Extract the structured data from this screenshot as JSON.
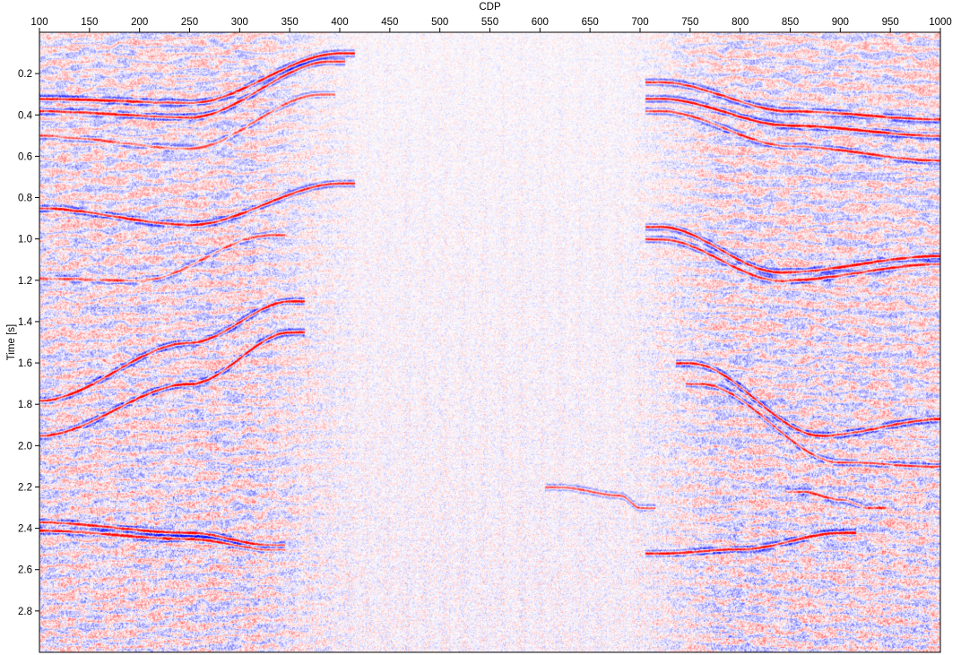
{
  "chart_data": {
    "type": "heatmap",
    "description_kind": "seismic-section",
    "xlabel": "CDP",
    "ylabel": "Time [s]",
    "x_axis_position": "top",
    "xlim": [
      100,
      1000
    ],
    "ylim": [
      0.0,
      3.0
    ],
    "y_inverted": true,
    "x_ticks": [
      100,
      150,
      200,
      250,
      300,
      350,
      400,
      450,
      500,
      550,
      600,
      650,
      700,
      750,
      800,
      850,
      900,
      950,
      1000
    ],
    "y_ticks": [
      0.2,
      0.4,
      0.6,
      0.8,
      1.0,
      1.2,
      1.4,
      1.6,
      1.8,
      2.0,
      2.2,
      2.4,
      2.6,
      2.8
    ],
    "y_tick_labels": [
      "0.2",
      "0.4",
      "0.6",
      "0.8",
      "1.0",
      "1.2",
      "1.4",
      "1.6",
      "1.8",
      "2.0",
      "2.2",
      "2.4",
      "2.6",
      "2.8"
    ],
    "colormap": {
      "negative": "#0000ff",
      "zero": "#ffffff",
      "positive": "#ff0000"
    },
    "grid": false,
    "reflectors": [
      {
        "points": [
          [
            100,
            0.32
          ],
          [
            250,
            0.34
          ],
          [
            400,
            0.1
          ]
        ],
        "strength": 1.0
      },
      {
        "points": [
          [
            100,
            0.38
          ],
          [
            250,
            0.41
          ],
          [
            390,
            0.14
          ]
        ],
        "strength": 0.9
      },
      {
        "points": [
          [
            100,
            0.5
          ],
          [
            250,
            0.56
          ],
          [
            380,
            0.3
          ]
        ],
        "strength": 0.6
      },
      {
        "points": [
          [
            100,
            0.85
          ],
          [
            250,
            0.93
          ],
          [
            400,
            0.73
          ]
        ],
        "strength": 1.0
      },
      {
        "points": [
          [
            100,
            1.19
          ],
          [
            200,
            1.2
          ],
          [
            330,
            0.98
          ]
        ],
        "strength": 0.6
      },
      {
        "points": [
          [
            100,
            1.78
          ],
          [
            250,
            1.5
          ],
          [
            350,
            1.3
          ]
        ],
        "strength": 1.0
      },
      {
        "points": [
          [
            100,
            1.95
          ],
          [
            250,
            1.7
          ],
          [
            350,
            1.45
          ]
        ],
        "strength": 1.0
      },
      {
        "points": [
          [
            100,
            2.37
          ],
          [
            250,
            2.42
          ],
          [
            330,
            2.48
          ]
        ],
        "strength": 1.0
      },
      {
        "points": [
          [
            100,
            2.41
          ],
          [
            250,
            2.45
          ],
          [
            330,
            2.5
          ]
        ],
        "strength": 0.9
      },
      {
        "points": [
          [
            720,
            0.24
          ],
          [
            850,
            0.38
          ],
          [
            1000,
            0.42
          ]
        ],
        "strength": 0.9
      },
      {
        "points": [
          [
            720,
            0.32
          ],
          [
            850,
            0.45
          ],
          [
            1000,
            0.5
          ]
        ],
        "strength": 1.0
      },
      {
        "points": [
          [
            720,
            0.38
          ],
          [
            850,
            0.55
          ],
          [
            1000,
            0.62
          ]
        ],
        "strength": 0.8
      },
      {
        "points": [
          [
            720,
            0.94
          ],
          [
            840,
            1.16
          ],
          [
            1000,
            1.08
          ]
        ],
        "strength": 1.0
      },
      {
        "points": [
          [
            720,
            1.0
          ],
          [
            840,
            1.2
          ],
          [
            1000,
            1.12
          ]
        ],
        "strength": 0.9
      },
      {
        "points": [
          [
            750,
            1.6
          ],
          [
            880,
            1.95
          ],
          [
            1000,
            1.87
          ]
        ],
        "strength": 1.0
      },
      {
        "points": [
          [
            760,
            1.7
          ],
          [
            900,
            2.08
          ],
          [
            1000,
            2.1
          ]
        ],
        "strength": 0.8
      },
      {
        "points": [
          [
            720,
            2.52
          ],
          [
            800,
            2.5
          ],
          [
            900,
            2.42
          ]
        ],
        "strength": 1.0
      },
      {
        "points": [
          [
            620,
            2.2
          ],
          [
            680,
            2.24
          ],
          [
            700,
            2.3
          ]
        ],
        "strength": 0.7
      },
      {
        "points": [
          [
            860,
            2.22
          ],
          [
            900,
            2.26
          ],
          [
            930,
            2.3
          ]
        ],
        "strength": 0.7
      }
    ]
  }
}
